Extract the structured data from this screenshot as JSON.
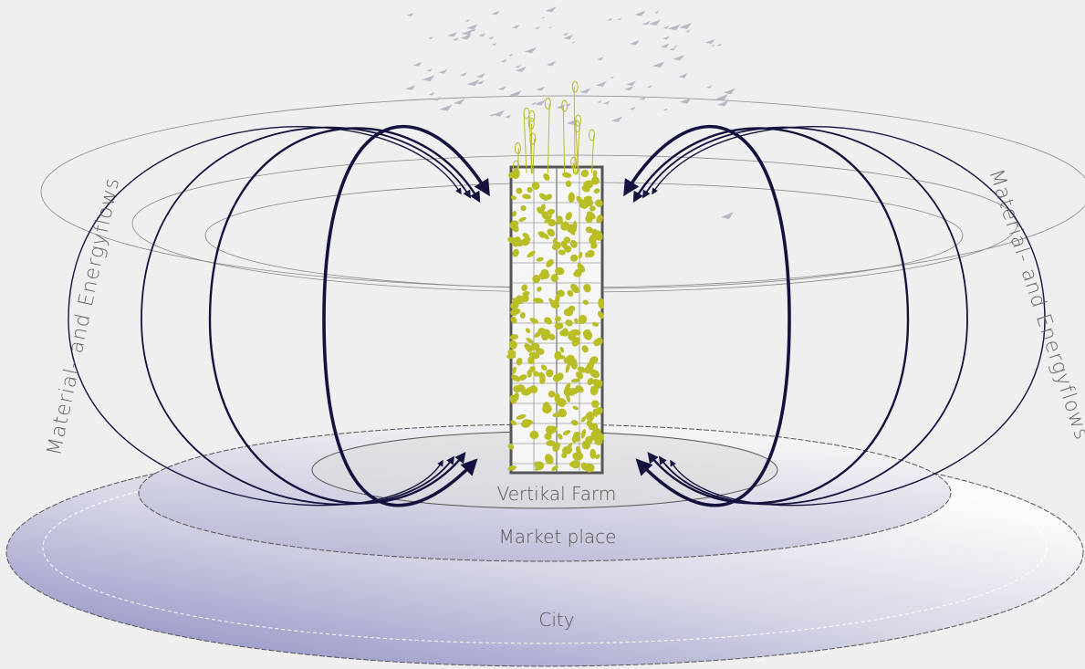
{
  "flow_labels": [
    "Material- and Energyflows",
    "Material- and Energyflows"
  ],
  "zones": [
    "Vertikal Farm",
    "Market place",
    "City"
  ]
}
